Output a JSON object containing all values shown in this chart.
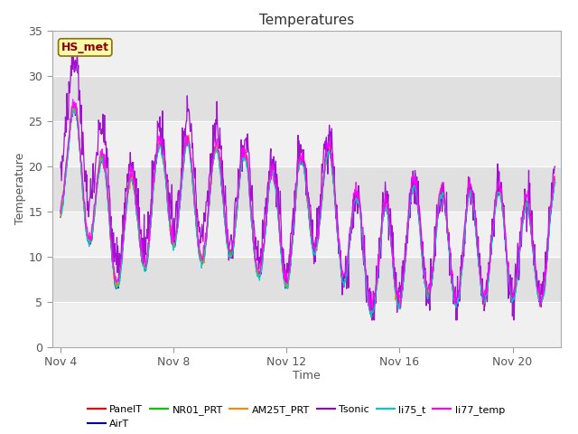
{
  "title": "Temperatures",
  "xlabel": "Time",
  "ylabel": "Temperature",
  "ylim": [
    0,
    35
  ],
  "yticks": [
    0,
    5,
    10,
    15,
    20,
    25,
    30,
    35
  ],
  "xlim_start": 3.7,
  "xlim_end": 21.7,
  "xtick_days": [
    4,
    8,
    12,
    16,
    20
  ],
  "xtick_labels": [
    "Nov 4",
    "Nov 8",
    "Nov 12",
    "Nov 16",
    "Nov 20"
  ],
  "annotation_text": "HS_met",
  "annotation_color": "#8B0000",
  "annotation_bg": "#FFFAAA",
  "annotation_border": "#8B7000",
  "series_colors": {
    "PanelT": "#FF0000",
    "AirT": "#0000CC",
    "NR01_PRT": "#00CC00",
    "AM25T_PRT": "#FF8800",
    "Tsonic": "#9900CC",
    "li75_t": "#00CCCC",
    "li77_temp": "#FF00FF"
  },
  "legend_order": [
    "PanelT",
    "AirT",
    "NR01_PRT",
    "AM25T_PRT",
    "Tsonic",
    "li75_t",
    "li77_temp"
  ],
  "bg_light": "#F0F0F0",
  "bg_dark": "#E0E0E0",
  "grid_color": "#FFFFFF",
  "seed": 42,
  "n_points": 1000,
  "start_day": 4.0,
  "end_day": 21.5
}
